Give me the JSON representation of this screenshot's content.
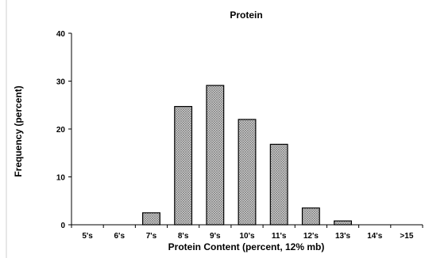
{
  "chart_data": {
    "type": "bar",
    "title": "Protein",
    "xlabel": "Protein Content (percent, 12% mb)",
    "ylabel": "Frequency (percent)",
    "categories": [
      "5's",
      "6's",
      "7's",
      "8's",
      "9's",
      "10's",
      "11's",
      "12's",
      "13's",
      "14's",
      ">15"
    ],
    "values": [
      0,
      0,
      2.5,
      24.7,
      29.1,
      22.0,
      16.8,
      3.5,
      0.8,
      0,
      0
    ],
    "ylim": [
      0,
      40
    ],
    "yticks": [
      "0",
      "10",
      "20",
      "30",
      "40"
    ],
    "grid": false,
    "legend": "none",
    "bar_fill": "#bdbdbd",
    "bar_pattern": "crosshatch"
  }
}
